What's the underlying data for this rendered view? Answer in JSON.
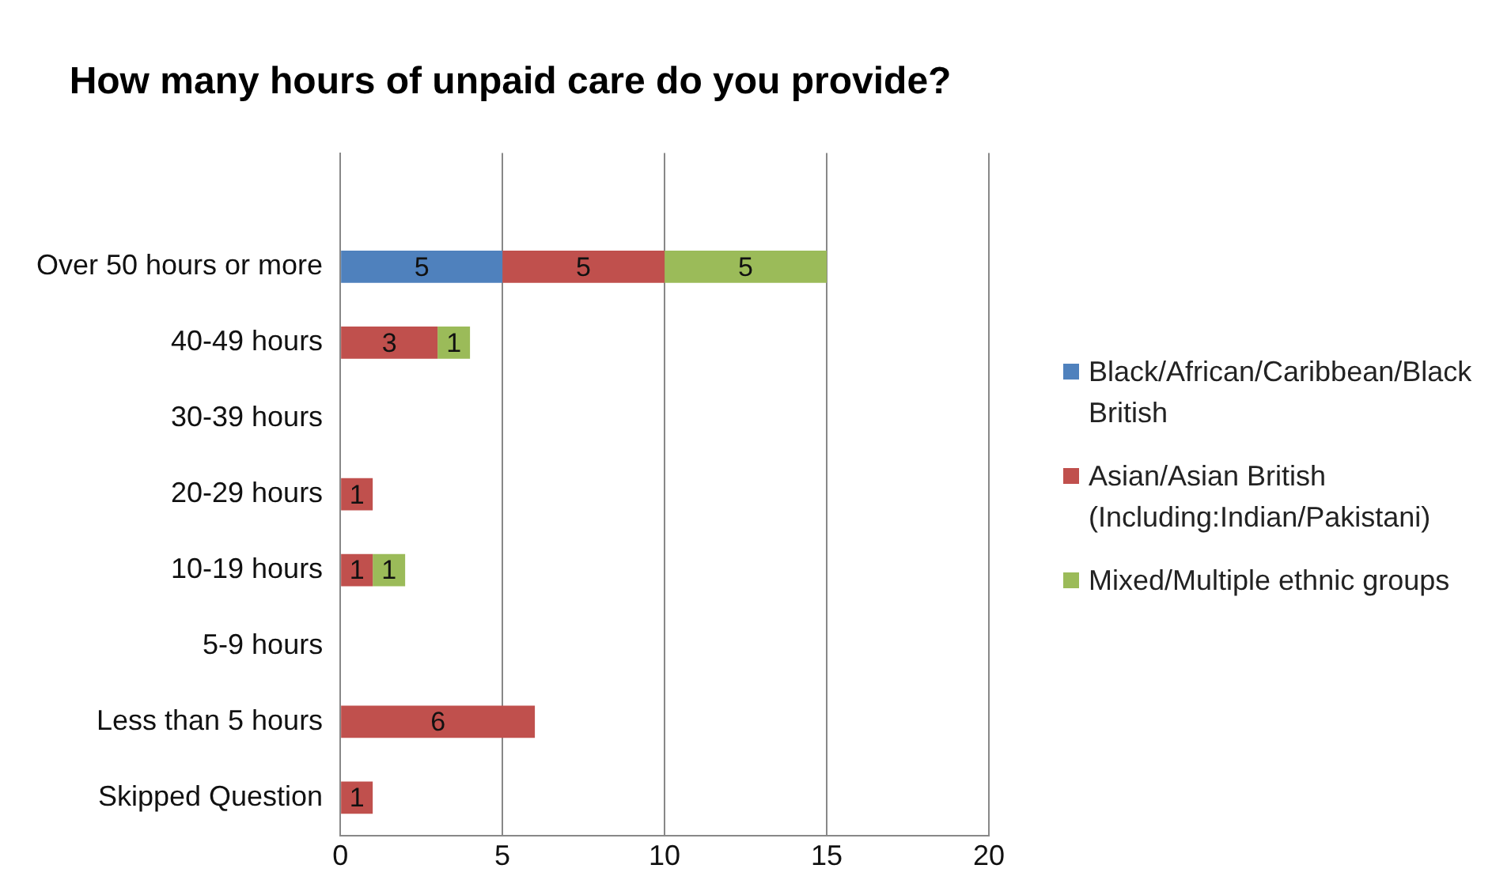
{
  "chart_data": {
    "type": "bar",
    "orientation": "horizontal",
    "stacked": true,
    "title": "How many hours of unpaid care do you provide?",
    "categories": [
      null,
      "Over 50 hours or more",
      "40-49 hours",
      "30-39 hours",
      "20-29 hours",
      "10-19 hours",
      "5-9 hours",
      "Less than 5 hours",
      "Skipped Question"
    ],
    "series": [
      {
        "name": "Black/African/Caribbean/Black British",
        "color": "#4f81bd",
        "values": [
          null,
          5,
          null,
          null,
          null,
          null,
          null,
          null,
          null
        ]
      },
      {
        "name": "Asian/Asian British (Including:Indian/Pakistani)",
        "color": "#c0504d",
        "values": [
          null,
          5,
          3,
          null,
          1,
          1,
          null,
          6,
          1
        ]
      },
      {
        "name": "Mixed/Multiple ethnic groups",
        "color": "#9bbb59",
        "values": [
          null,
          5,
          1,
          null,
          null,
          1,
          null,
          null,
          null
        ]
      }
    ],
    "xlim": [
      0,
      20
    ],
    "xticks": [
      0,
      5,
      10,
      15,
      20
    ],
    "grid": "x",
    "legend": "right",
    "data_labels": true
  }
}
